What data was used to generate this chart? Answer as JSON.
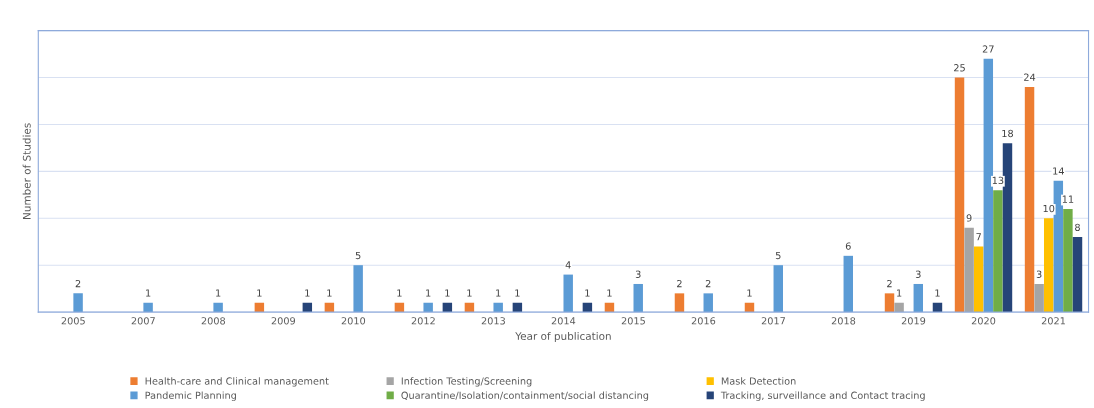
{
  "chart_data": {
    "type": "bar",
    "xlabel": "Year of publication",
    "ylabel": "Number of Studies",
    "categories": [
      "2005",
      "2007",
      "2008",
      "2009",
      "2010",
      "2012",
      "2013",
      "2014",
      "2015",
      "2016",
      "2017",
      "2018",
      "2019",
      "2020",
      "2021"
    ],
    "series": [
      {
        "name": "Health-care and Clinical management",
        "color": "#ed7d31",
        "values": [
          null,
          null,
          null,
          1,
          1,
          1,
          1,
          null,
          1,
          2,
          1,
          null,
          2,
          25,
          24
        ]
      },
      {
        "name": "Infection Testing/Screening",
        "color": "#a5a5a5",
        "values": [
          null,
          null,
          null,
          null,
          null,
          null,
          null,
          null,
          null,
          null,
          null,
          null,
          1,
          9,
          3
        ]
      },
      {
        "name": "Mask Detection",
        "color": "#ffc000",
        "values": [
          null,
          null,
          null,
          null,
          null,
          null,
          null,
          null,
          null,
          null,
          null,
          null,
          null,
          7,
          10
        ]
      },
      {
        "name": "Pandemic Planning",
        "color": "#5b9bd5",
        "values": [
          2,
          1,
          1,
          null,
          5,
          1,
          1,
          4,
          3,
          2,
          5,
          6,
          3,
          27,
          14
        ]
      },
      {
        "name": "Quarantine/Isolation/containment/social distancing",
        "color": "#70ad47",
        "values": [
          null,
          null,
          null,
          null,
          null,
          null,
          null,
          null,
          null,
          null,
          null,
          null,
          null,
          13,
          11
        ]
      },
      {
        "name": "Tracking, surveillance and Contact tracing",
        "color": "#264478",
        "values": [
          null,
          null,
          null,
          1,
          null,
          1,
          1,
          1,
          null,
          null,
          null,
          null,
          1,
          18,
          8
        ]
      }
    ],
    "ylim": [
      0,
      30
    ],
    "yticks": [
      {
        "value": 0,
        "label": null
      },
      {
        "value": 5,
        "label": null
      },
      {
        "value": 10,
        "label": null
      },
      {
        "value": 15,
        "label": null
      },
      {
        "value": 20,
        "label": null
      },
      {
        "value": 25,
        "label": null
      },
      {
        "value": 30,
        "label": null
      }
    ],
    "tick_labels": "x",
    "grid": "y",
    "data_labels": true,
    "legend": "bottom"
  }
}
